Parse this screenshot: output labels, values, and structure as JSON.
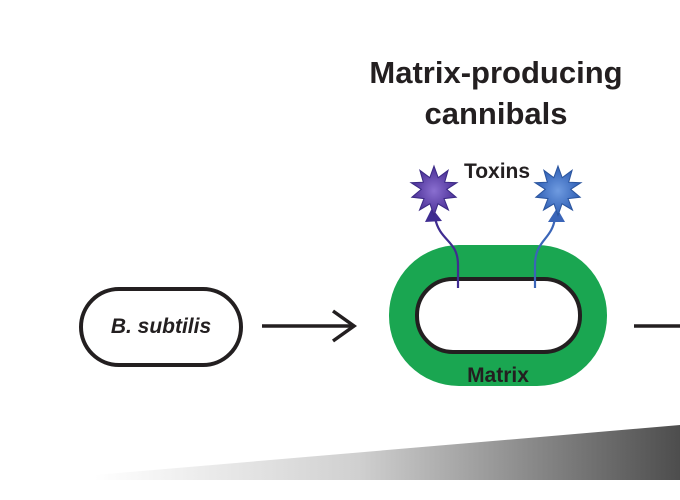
{
  "title_line1": "Matrix-producing",
  "title_line2": "cannibals",
  "toxins_label": "Toxins",
  "cell_label": "B. subtilis",
  "matrix_label": "Matrix",
  "colors": {
    "matrix_green": "#1aa651",
    "outline": "#231f20",
    "toxin_left": "#5b3fa1",
    "toxin_right": "#3b6fc4",
    "arrow_left": "#3f2c91",
    "arrow_right": "#3a65b8",
    "gradient_dark": "#4d4d4d"
  }
}
